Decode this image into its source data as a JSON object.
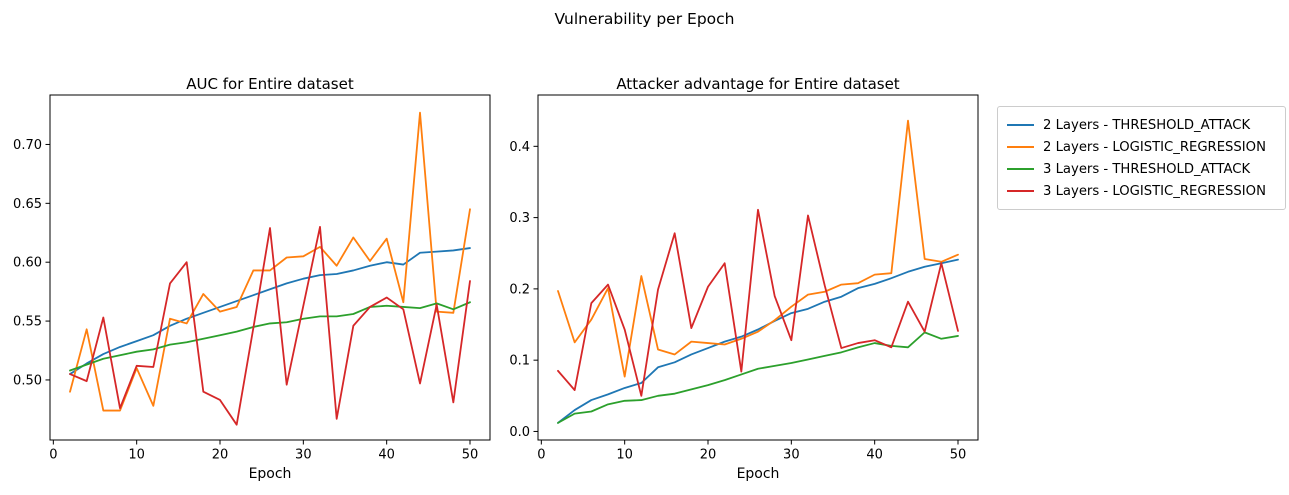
{
  "figure": {
    "suptitle": "Vulnerability per Epoch"
  },
  "legend": {
    "entries": [
      {
        "label": "2 Layers - THRESHOLD_ATTACK",
        "color": "#1f77b4"
      },
      {
        "label": "2 Layers - LOGISTIC_REGRESSION",
        "color": "#ff7f0e"
      },
      {
        "label": "3 Layers - THRESHOLD_ATTACK",
        "color": "#2ca02c"
      },
      {
        "label": "3 Layers - LOGISTIC_REGRESSION",
        "color": "#d62728"
      }
    ]
  },
  "chart_data": [
    {
      "type": "line",
      "title": "AUC for Entire dataset",
      "xlabel": "Epoch",
      "ylabel": "",
      "x": [
        2,
        4,
        6,
        8,
        10,
        12,
        14,
        16,
        18,
        20,
        22,
        24,
        26,
        28,
        30,
        32,
        34,
        36,
        38,
        40,
        42,
        44,
        46,
        48,
        50
      ],
      "xlim": [
        -0.4,
        52.4
      ],
      "ylim": [
        0.449,
        0.742
      ],
      "xticks": [
        0,
        10,
        20,
        30,
        40,
        50
      ],
      "xtick_labels": [
        "0",
        "10",
        "20",
        "30",
        "40",
        "50"
      ],
      "yticks": [
        0.5,
        0.55,
        0.6,
        0.65,
        0.7
      ],
      "ytick_labels": [
        "0.50",
        "0.55",
        "0.60",
        "0.65",
        "0.70"
      ],
      "grid": false,
      "series": [
        {
          "name": "2 Layers - THRESHOLD_ATTACK",
          "color": "#1f77b4",
          "values": [
            0.505,
            0.514,
            0.522,
            0.528,
            0.533,
            0.538,
            0.546,
            0.552,
            0.557,
            0.562,
            0.567,
            0.572,
            0.577,
            0.582,
            0.586,
            0.589,
            0.59,
            0.593,
            0.597,
            0.6,
            0.598,
            0.608,
            0.609,
            0.61,
            0.612
          ]
        },
        {
          "name": "2 Layers - LOGISTIC_REGRESSION",
          "color": "#ff7f0e",
          "values": [
            0.49,
            0.543,
            0.474,
            0.474,
            0.51,
            0.478,
            0.552,
            0.548,
            0.573,
            0.558,
            0.562,
            0.593,
            0.593,
            0.604,
            0.605,
            0.613,
            0.597,
            0.621,
            0.601,
            0.62,
            0.566,
            0.727,
            0.558,
            0.557,
            0.645
          ]
        },
        {
          "name": "3 Layers - THRESHOLD_ATTACK",
          "color": "#2ca02c",
          "values": [
            0.508,
            0.513,
            0.518,
            0.521,
            0.524,
            0.526,
            0.53,
            0.532,
            0.535,
            0.538,
            0.541,
            0.545,
            0.548,
            0.549,
            0.552,
            0.554,
            0.554,
            0.556,
            0.562,
            0.563,
            0.562,
            0.561,
            0.565,
            0.56,
            0.566
          ]
        },
        {
          "name": "3 Layers - LOGISTIC_REGRESSION",
          "color": "#d62728",
          "values": [
            0.505,
            0.499,
            0.553,
            0.476,
            0.512,
            0.511,
            0.582,
            0.6,
            0.49,
            0.483,
            0.462,
            0.544,
            0.629,
            0.496,
            0.563,
            0.63,
            0.467,
            0.546,
            0.562,
            0.57,
            0.56,
            0.497,
            0.564,
            0.481,
            0.584
          ]
        }
      ]
    },
    {
      "type": "line",
      "title": "Attacker advantage for Entire dataset",
      "xlabel": "Epoch",
      "ylabel": "",
      "x": [
        2,
        4,
        6,
        8,
        10,
        12,
        14,
        16,
        18,
        20,
        22,
        24,
        26,
        28,
        30,
        32,
        34,
        36,
        38,
        40,
        42,
        44,
        46,
        48,
        50
      ],
      "xlim": [
        -0.4,
        52.4
      ],
      "ylim": [
        -0.012,
        0.472
      ],
      "xticks": [
        0,
        10,
        20,
        30,
        40,
        50
      ],
      "xtick_labels": [
        "0",
        "10",
        "20",
        "30",
        "40",
        "50"
      ],
      "yticks": [
        0.0,
        0.1,
        0.2,
        0.3,
        0.4
      ],
      "ytick_labels": [
        "0.0",
        "0.1",
        "0.2",
        "0.3",
        "0.4"
      ],
      "grid": false,
      "series": [
        {
          "name": "2 Layers - THRESHOLD_ATTACK",
          "color": "#1f77b4",
          "values": [
            0.012,
            0.03,
            0.044,
            0.052,
            0.061,
            0.068,
            0.09,
            0.097,
            0.108,
            0.117,
            0.126,
            0.133,
            0.143,
            0.155,
            0.166,
            0.172,
            0.182,
            0.189,
            0.201,
            0.207,
            0.215,
            0.224,
            0.231,
            0.236,
            0.241
          ]
        },
        {
          "name": "2 Layers - LOGISTIC_REGRESSION",
          "color": "#ff7f0e",
          "values": [
            0.197,
            0.125,
            0.157,
            0.201,
            0.077,
            0.218,
            0.115,
            0.108,
            0.126,
            0.124,
            0.122,
            0.13,
            0.14,
            0.156,
            0.175,
            0.192,
            0.196,
            0.206,
            0.208,
            0.22,
            0.222,
            0.436,
            0.242,
            0.238,
            0.248
          ]
        },
        {
          "name": "3 Layers - THRESHOLD_ATTACK",
          "color": "#2ca02c",
          "values": [
            0.012,
            0.025,
            0.028,
            0.038,
            0.043,
            0.044,
            0.05,
            0.053,
            0.059,
            0.065,
            0.072,
            0.08,
            0.088,
            0.092,
            0.096,
            0.101,
            0.106,
            0.111,
            0.118,
            0.124,
            0.12,
            0.118,
            0.139,
            0.13,
            0.134
          ]
        },
        {
          "name": "3 Layers - LOGISTIC_REGRESSION",
          "color": "#d62728",
          "values": [
            0.085,
            0.058,
            0.18,
            0.206,
            0.143,
            0.05,
            0.199,
            0.278,
            0.145,
            0.203,
            0.236,
            0.084,
            0.311,
            0.19,
            0.128,
            0.303,
            0.205,
            0.117,
            0.124,
            0.128,
            0.118,
            0.182,
            0.14,
            0.236,
            0.141
          ]
        }
      ]
    }
  ]
}
